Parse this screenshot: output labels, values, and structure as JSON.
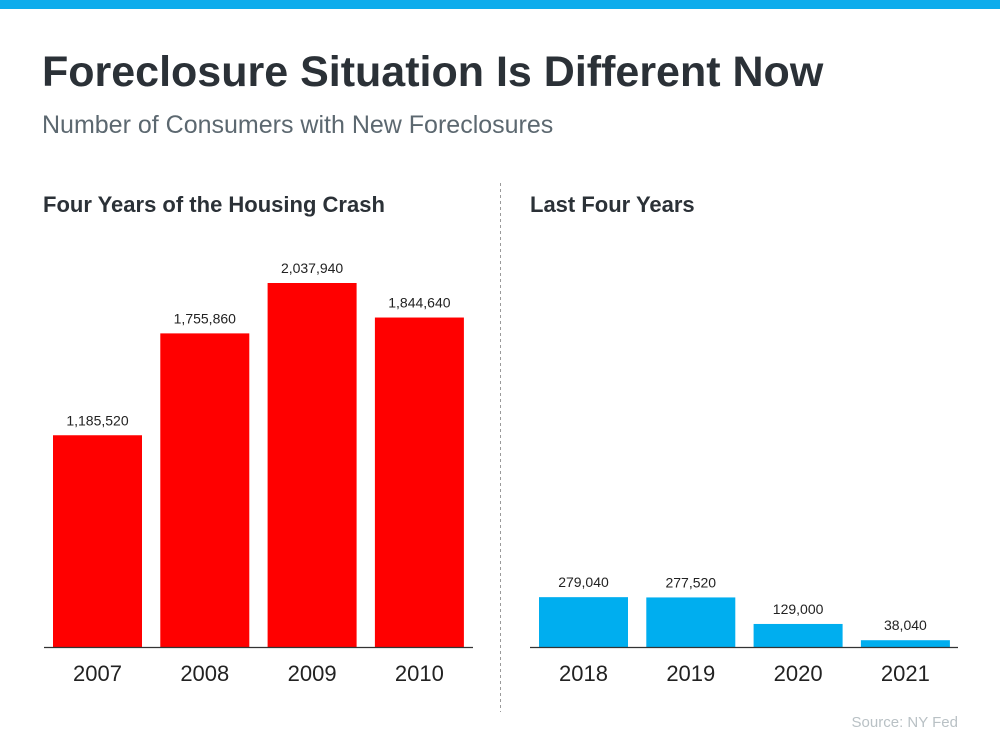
{
  "title": "Foreclosure Situation Is Different Now",
  "subtitle": "Number of Consumers with New Foreclosures",
  "source": "Source: NY Fed",
  "colors": {
    "top_bar": "#0eacec",
    "crash": "#ff0000",
    "recent": "#00aeef"
  },
  "chart_data": [
    {
      "type": "bar",
      "title": "Four Years of the Housing Crash",
      "categories": [
        "2007",
        "2008",
        "2009",
        "2010"
      ],
      "values": [
        1185520,
        1755860,
        2037940,
        1844640
      ],
      "labels": [
        "1,185,520",
        "1,755,860",
        "2,037,940",
        "1,844,640"
      ],
      "color": "#ff0000",
      "ylim": [
        0,
        2037940
      ],
      "grid": false
    },
    {
      "type": "bar",
      "title": "Last Four Years",
      "categories": [
        "2018",
        "2019",
        "2020",
        "2021"
      ],
      "values": [
        279040,
        277520,
        129000,
        38040
      ],
      "labels": [
        "279,040",
        "277,520",
        "129,000",
        "38,040"
      ],
      "color": "#00aeef",
      "ylim": [
        0,
        2037940
      ],
      "grid": false
    }
  ]
}
